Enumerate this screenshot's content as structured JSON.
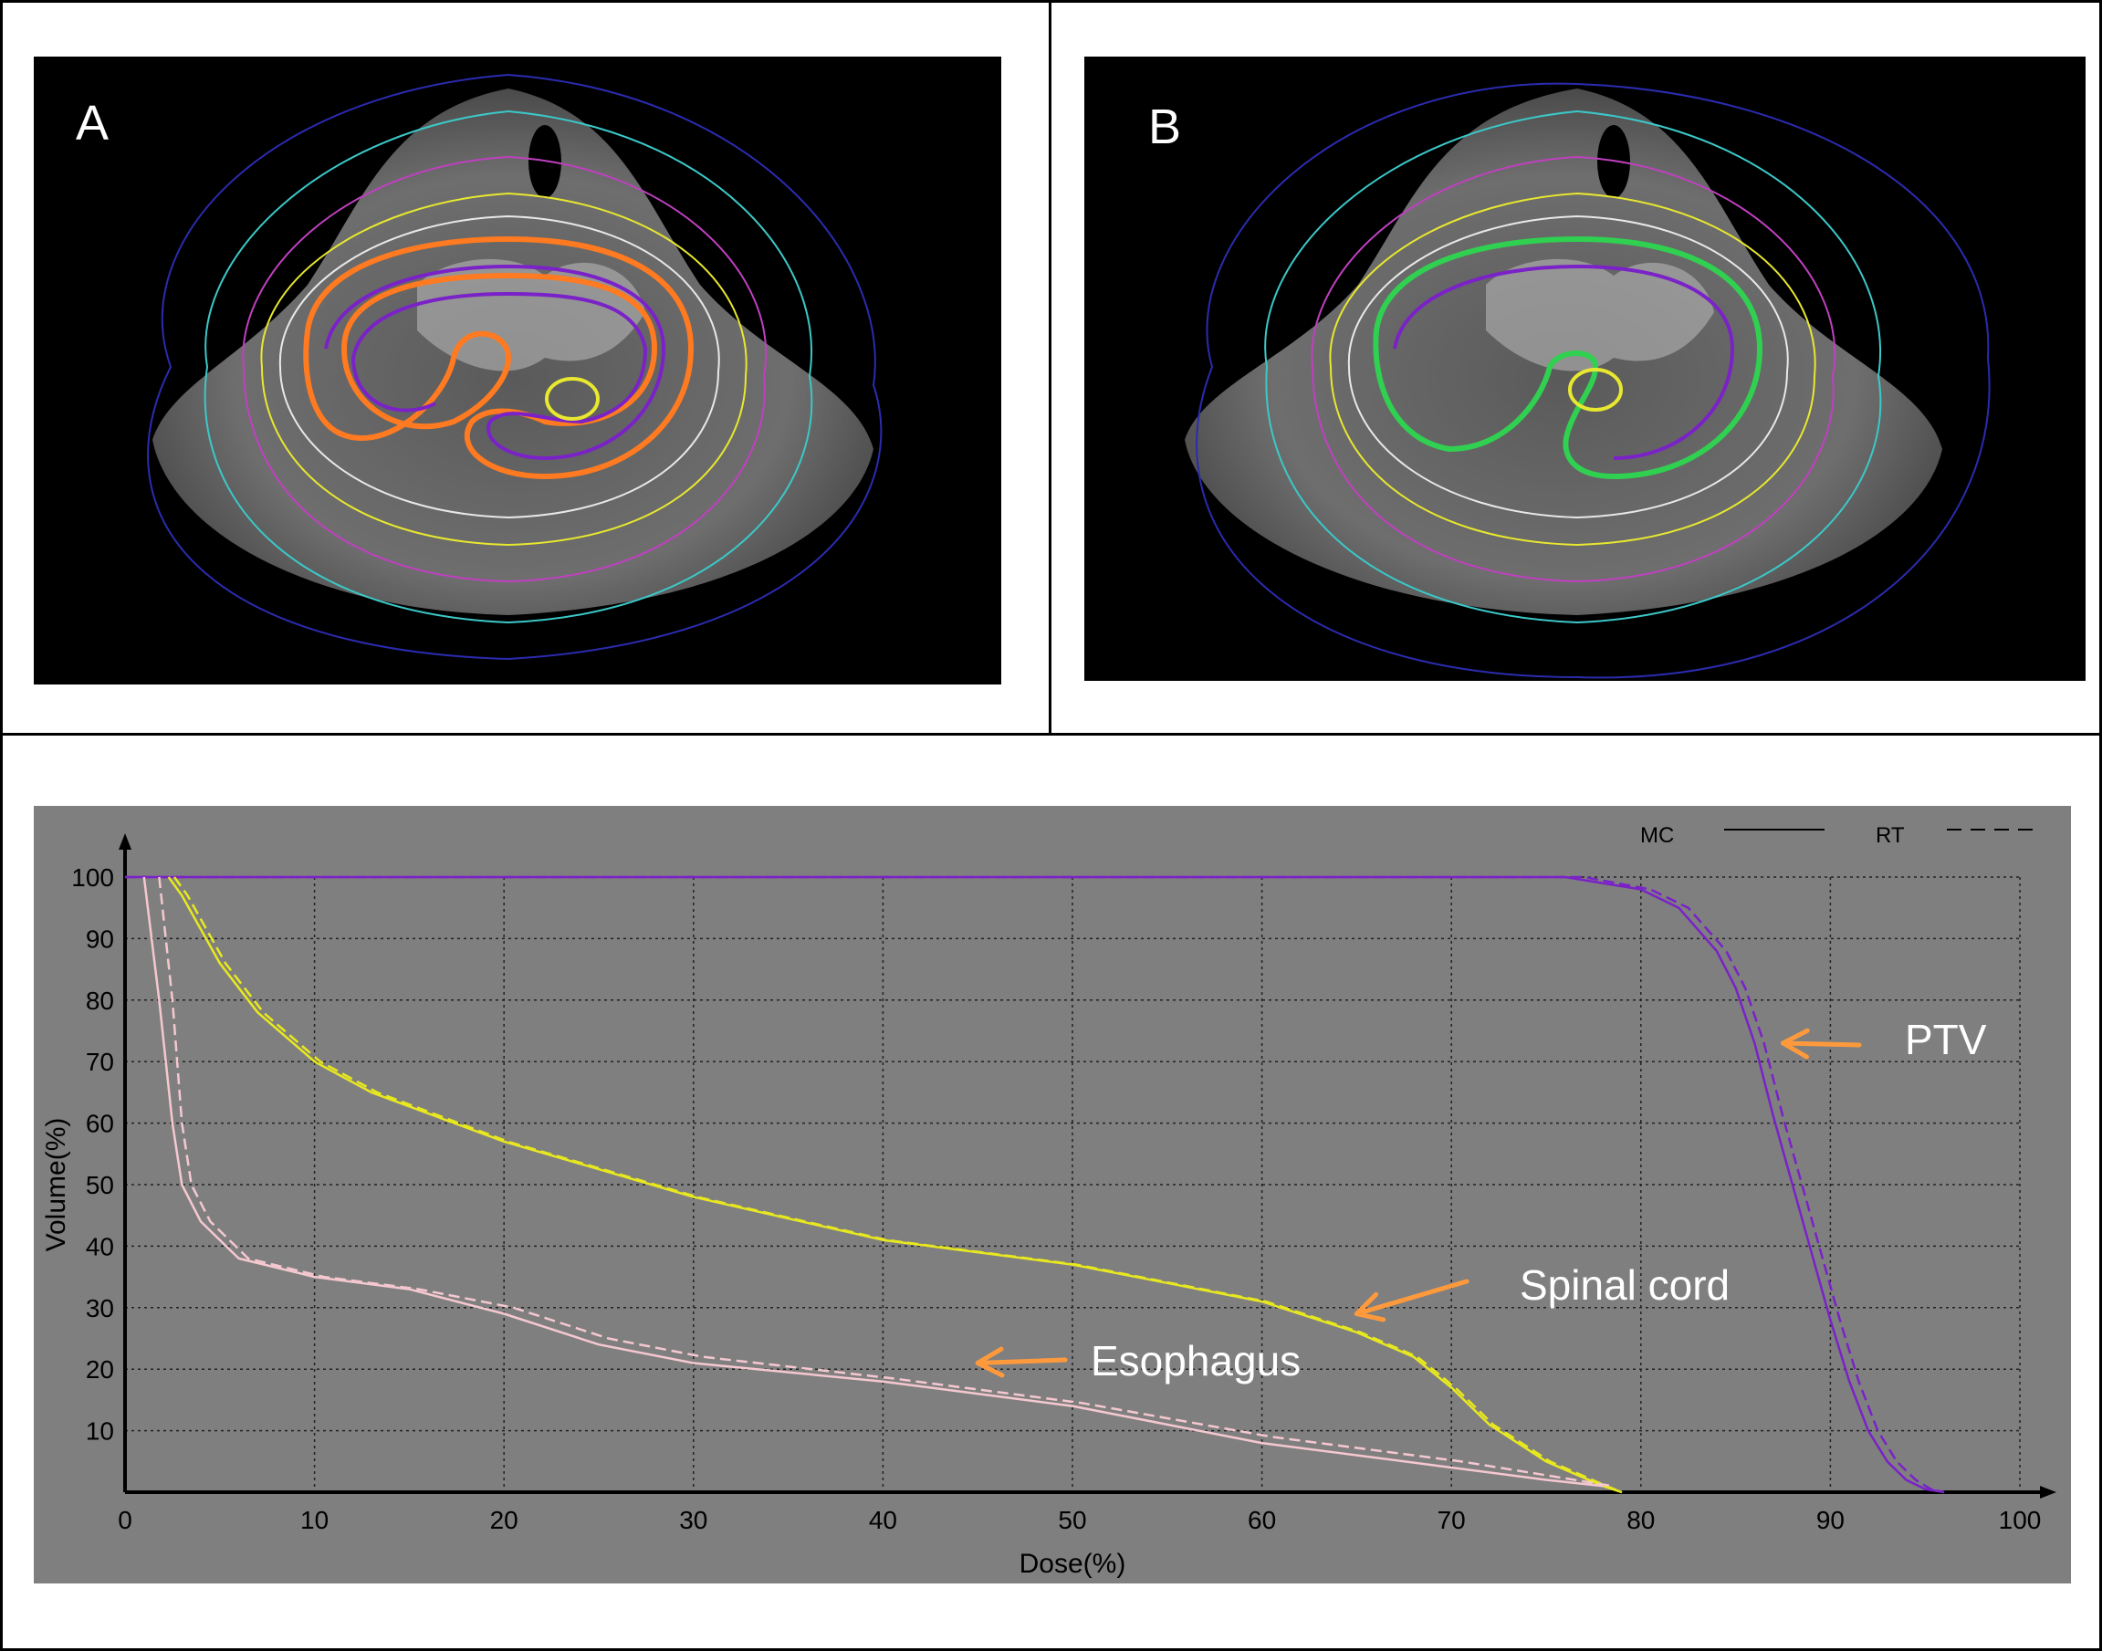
{
  "panels": {
    "a_label": "A",
    "b_label": "B"
  },
  "chart_data": {
    "type": "line",
    "title": "",
    "xlabel": "Dose(%)",
    "ylabel": "Volume(%)",
    "xlim": [
      0,
      100
    ],
    "ylim": [
      0,
      100
    ],
    "xticks": [
      0,
      10,
      20,
      30,
      40,
      50,
      60,
      70,
      80,
      90,
      100
    ],
    "yticks": [
      10,
      20,
      30,
      40,
      50,
      60,
      70,
      80,
      90,
      100
    ],
    "grid": true,
    "background": "#7f7f7f",
    "legend": {
      "position": "top-right",
      "entries": [
        {
          "label": "MC",
          "style": "solid"
        },
        {
          "label": "RT",
          "style": "dashed"
        }
      ]
    },
    "annotations": [
      {
        "text": "PTV",
        "arrow_to": [
          87.5,
          73
        ]
      },
      {
        "text": "Spinal cord",
        "arrow_to": [
          65,
          29
        ]
      },
      {
        "text": "Esophagus",
        "arrow_to": [
          45,
          21
        ]
      }
    ],
    "series": [
      {
        "structure": "PTV",
        "method": "MC",
        "color": "#7a22c8",
        "style": "solid",
        "x": [
          0,
          76,
          80,
          82,
          84,
          85,
          86,
          87,
          88,
          89,
          90,
          91,
          92,
          93,
          94,
          95,
          96
        ],
        "y": [
          100,
          100,
          98,
          95,
          88,
          82,
          73,
          61,
          50,
          39,
          28,
          18,
          10,
          5,
          2,
          0.5,
          0
        ]
      },
      {
        "structure": "PTV",
        "method": "RT",
        "color": "#7a22c8",
        "style": "dashed",
        "x": [
          0,
          77,
          80.5,
          82.5,
          84.5,
          85.5,
          86.5,
          87.5,
          88.5,
          89.5,
          90.5,
          91.5,
          92.5,
          93.5,
          94.5,
          95.3,
          96
        ],
        "y": [
          100,
          100,
          98,
          95,
          88,
          82,
          73,
          61,
          50,
          39,
          28,
          18,
          10,
          5,
          2,
          0.5,
          0
        ]
      },
      {
        "structure": "Spinal cord",
        "method": "MC",
        "color": "#e8e820",
        "style": "solid",
        "x": [
          2.3,
          3,
          5,
          7,
          10,
          13,
          20,
          30,
          40,
          50,
          55,
          60,
          63,
          65,
          68,
          70,
          72,
          75,
          78,
          79
        ],
        "y": [
          100,
          97,
          86,
          78,
          70,
          65,
          57,
          48,
          41,
          37,
          34,
          31,
          28,
          26,
          22,
          17,
          11,
          5,
          1,
          0
        ]
      },
      {
        "structure": "Spinal cord",
        "method": "RT",
        "color": "#e8e820",
        "style": "dashed",
        "x": [
          2.6,
          3.3,
          5.3,
          7.3,
          10.3,
          13.3,
          20.2,
          30.2,
          40.2,
          50.2,
          55.2,
          60.2,
          63.2,
          65.2,
          68.2,
          70.2,
          72.2,
          75.2,
          78.2,
          79
        ],
        "y": [
          100,
          97,
          86,
          78,
          70,
          65,
          57,
          48,
          41,
          37,
          34,
          31,
          28,
          26,
          22,
          17,
          11,
          5,
          1,
          0
        ]
      },
      {
        "structure": "Esophagus",
        "method": "MC",
        "color": "#f5c8d0",
        "style": "solid",
        "x": [
          1,
          1.8,
          2.5,
          3,
          4,
          6,
          10,
          15,
          20,
          25,
          30,
          40,
          50,
          60,
          70,
          75,
          78
        ],
        "y": [
          100,
          80,
          60,
          50,
          44,
          38,
          35,
          33,
          29,
          24,
          21,
          18,
          14,
          8,
          4,
          2,
          1
        ]
      },
      {
        "structure": "Esophagus",
        "method": "RT",
        "color": "#f5c8d0",
        "style": "dashed",
        "x": [
          1.8,
          2.5,
          3,
          3.5,
          4.5,
          6.5,
          10.5,
          15.5,
          20.5,
          25.5,
          30.5,
          40.5,
          50.5,
          60.5,
          70.5,
          75.5,
          78.5
        ],
        "y": [
          100,
          80,
          60,
          50,
          44,
          38,
          35,
          33,
          30,
          25,
          22,
          18.5,
          14.5,
          9,
          5,
          2.5,
          1
        ]
      }
    ]
  }
}
